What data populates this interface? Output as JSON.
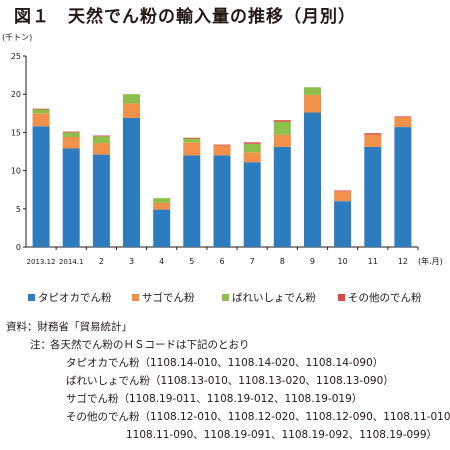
{
  "figure": {
    "number": "図１",
    "title": "天然でん粉の輸入量の推移（月別）",
    "y_unit": "(千トン)",
    "x_unit": "(年.月)"
  },
  "chart_data": {
    "type": "bar",
    "stacked": true,
    "categories": [
      "2013.12",
      "2014.1",
      "2",
      "3",
      "4",
      "5",
      "6",
      "7",
      "8",
      "9",
      "10",
      "11",
      "12"
    ],
    "ylim": [
      0,
      25
    ],
    "yticks": [
      0,
      5,
      10,
      15,
      20,
      25
    ],
    "grid": false,
    "legend_position": "bottom",
    "series": [
      {
        "name": "タピオカでん粉",
        "color": "#2e7cc0",
        "values": [
          15.8,
          12.9,
          12.1,
          16.9,
          4.9,
          12.0,
          12.0,
          11.1,
          13.1,
          17.6,
          6.0,
          13.1,
          15.7
        ]
      },
      {
        "name": "サゴでん粉",
        "color": "#f19149",
        "values": [
          1.7,
          1.5,
          1.5,
          1.9,
          0.9,
          1.7,
          1.3,
          1.3,
          1.6,
          2.3,
          1.3,
          1.6,
          1.3
        ]
      },
      {
        "name": "ばれいしょでん粉",
        "color": "#8dc04b",
        "values": [
          0.5,
          0.6,
          0.9,
          1.2,
          0.6,
          0.5,
          0.0,
          1.1,
          1.7,
          1.0,
          0.0,
          0.0,
          0.0
        ]
      },
      {
        "name": "その他のでん粉",
        "color": "#d9484b",
        "values": [
          0.1,
          0.1,
          0.1,
          0.0,
          0.0,
          0.1,
          0.1,
          0.2,
          0.2,
          0.0,
          0.1,
          0.2,
          0.1
        ]
      }
    ]
  },
  "notes": {
    "source": "資料：財務省「貿易統計」",
    "note_label": "注：",
    "note_main": "各天然でん粉のＨＳコードは下記のとおり",
    "tapioca": "タピオカでん粉（1108.14-010、1108.14-020、1108.14-090）",
    "potato": "ばれいしょでん粉（1108.13-010、1108.13-020、1108.13-090）",
    "sago": "サゴでん粉（1108.19-011、1108.19-012、1108.19-019）",
    "other_1": "その他のでん粉（1108.12-010、1108.12-020、1108.12-090、1108.11-010、",
    "other_2": "1108.11-090、1108.19-091、1108.19-092、1108.19-099）"
  }
}
